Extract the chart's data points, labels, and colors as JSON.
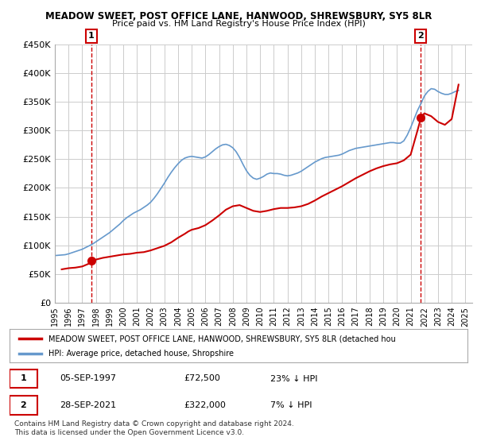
{
  "title_line1": "MEADOW SWEET, POST OFFICE LANE, HANWOOD, SHREWSBURY, SY5 8LR",
  "title_line2": "Price paid vs. HM Land Registry's House Price Index (HPI)",
  "ylabel": "",
  "ylim": [
    0,
    450000
  ],
  "yticks": [
    0,
    50000,
    100000,
    150000,
    200000,
    250000,
    300000,
    350000,
    400000,
    450000
  ],
  "ytick_labels": [
    "£0",
    "£50K",
    "£100K",
    "£150K",
    "£200K",
    "£250K",
    "£300K",
    "£350K",
    "£400K",
    "£450K"
  ],
  "xlim_start": 1995.0,
  "xlim_end": 2025.5,
  "xtick_years": [
    1995,
    1996,
    1997,
    1998,
    1999,
    2000,
    2001,
    2002,
    2003,
    2004,
    2005,
    2006,
    2007,
    2008,
    2009,
    2010,
    2011,
    2012,
    2013,
    2014,
    2015,
    2016,
    2017,
    2018,
    2019,
    2020,
    2021,
    2022,
    2023,
    2024,
    2025
  ],
  "hpi_color": "#6699cc",
  "price_color": "#cc0000",
  "marker_color": "#cc0000",
  "annotation_box_color": "#cc0000",
  "grid_color": "#cccccc",
  "background_color": "#ffffff",
  "purchase1_x": 1997.67,
  "purchase1_y": 72500,
  "purchase1_label": "1",
  "purchase2_x": 2021.73,
  "purchase2_y": 322000,
  "purchase2_label": "2",
  "legend_line1": "MEADOW SWEET, POST OFFICE LANE, HANWOOD, SHREWSBURY, SY5 8LR (detached hou",
  "legend_line2": "HPI: Average price, detached house, Shropshire",
  "table_row1_num": "1",
  "table_row1_date": "05-SEP-1997",
  "table_row1_price": "£72,500",
  "table_row1_hpi": "23% ↓ HPI",
  "table_row2_num": "2",
  "table_row2_date": "28-SEP-2021",
  "table_row2_price": "£322,000",
  "table_row2_hpi": "7% ↓ HPI",
  "footer": "Contains HM Land Registry data © Crown copyright and database right 2024.\nThis data is licensed under the Open Government Licence v3.0.",
  "hpi_data_x": [
    1995.0,
    1995.25,
    1995.5,
    1995.75,
    1996.0,
    1996.25,
    1996.5,
    1996.75,
    1997.0,
    1997.25,
    1997.5,
    1997.75,
    1998.0,
    1998.25,
    1998.5,
    1998.75,
    1999.0,
    1999.25,
    1999.5,
    1999.75,
    2000.0,
    2000.25,
    2000.5,
    2000.75,
    2001.0,
    2001.25,
    2001.5,
    2001.75,
    2002.0,
    2002.25,
    2002.5,
    2002.75,
    2003.0,
    2003.25,
    2003.5,
    2003.75,
    2004.0,
    2004.25,
    2004.5,
    2004.75,
    2005.0,
    2005.25,
    2005.5,
    2005.75,
    2006.0,
    2006.25,
    2006.5,
    2006.75,
    2007.0,
    2007.25,
    2007.5,
    2007.75,
    2008.0,
    2008.25,
    2008.5,
    2008.75,
    2009.0,
    2009.25,
    2009.5,
    2009.75,
    2010.0,
    2010.25,
    2010.5,
    2010.75,
    2011.0,
    2011.25,
    2011.5,
    2011.75,
    2012.0,
    2012.25,
    2012.5,
    2012.75,
    2013.0,
    2013.25,
    2013.5,
    2013.75,
    2014.0,
    2014.25,
    2014.5,
    2014.75,
    2015.0,
    2015.25,
    2015.5,
    2015.75,
    2016.0,
    2016.25,
    2016.5,
    2016.75,
    2017.0,
    2017.25,
    2017.5,
    2017.75,
    2018.0,
    2018.25,
    2018.5,
    2018.75,
    2019.0,
    2019.25,
    2019.5,
    2019.75,
    2020.0,
    2020.25,
    2020.5,
    2020.75,
    2021.0,
    2021.25,
    2021.5,
    2021.75,
    2022.0,
    2022.25,
    2022.5,
    2022.75,
    2023.0,
    2023.25,
    2023.5,
    2023.75,
    2024.0,
    2024.25,
    2024.5
  ],
  "hpi_data_y": [
    82000,
    82500,
    83000,
    83500,
    85000,
    87000,
    89000,
    91000,
    93000,
    96000,
    99000,
    102000,
    106000,
    110000,
    114000,
    118000,
    122000,
    127000,
    132000,
    137000,
    143000,
    148000,
    152000,
    156000,
    159000,
    162000,
    166000,
    170000,
    175000,
    182000,
    190000,
    199000,
    208000,
    218000,
    227000,
    235000,
    242000,
    248000,
    252000,
    254000,
    255000,
    254000,
    253000,
    252000,
    254000,
    258000,
    263000,
    268000,
    272000,
    275000,
    276000,
    274000,
    270000,
    263000,
    253000,
    241000,
    230000,
    222000,
    217000,
    215000,
    217000,
    220000,
    224000,
    226000,
    225000,
    225000,
    224000,
    222000,
    221000,
    222000,
    224000,
    226000,
    229000,
    233000,
    237000,
    241000,
    245000,
    248000,
    251000,
    253000,
    254000,
    255000,
    256000,
    257000,
    259000,
    262000,
    265000,
    267000,
    269000,
    270000,
    271000,
    272000,
    273000,
    274000,
    275000,
    276000,
    277000,
    278000,
    279000,
    279000,
    278000,
    278000,
    282000,
    292000,
    305000,
    320000,
    335000,
    347000,
    360000,
    368000,
    373000,
    372000,
    368000,
    365000,
    363000,
    363000,
    365000,
    368000,
    370000
  ],
  "price_data_x": [
    1995.5,
    1996.0,
    1996.5,
    1997.0,
    1997.5,
    1997.75,
    1998.0,
    1998.5,
    1999.0,
    1999.5,
    2000.0,
    2000.5,
    2001.0,
    2001.5,
    2002.0,
    2002.5,
    2003.0,
    2003.5,
    2004.0,
    2004.5,
    2004.75,
    2005.0,
    2005.5,
    2006.0,
    2006.5,
    2007.0,
    2007.5,
    2008.0,
    2008.5,
    2009.0,
    2009.5,
    2010.0,
    2010.5,
    2011.0,
    2011.5,
    2012.0,
    2012.5,
    2013.0,
    2013.5,
    2014.0,
    2014.5,
    2015.0,
    2015.5,
    2016.0,
    2016.5,
    2017.0,
    2017.5,
    2018.0,
    2018.5,
    2019.0,
    2019.5,
    2020.0,
    2020.5,
    2021.0,
    2021.5,
    2021.75,
    2022.0,
    2022.5,
    2023.0,
    2023.5,
    2024.0,
    2024.5
  ],
  "price_data_y": [
    58000,
    60000,
    61000,
    63000,
    68000,
    72500,
    75000,
    78000,
    80000,
    82000,
    84000,
    85000,
    87000,
    88000,
    91000,
    95000,
    99000,
    105000,
    113000,
    120000,
    124000,
    127000,
    130000,
    135000,
    143000,
    152000,
    162000,
    168000,
    170000,
    165000,
    160000,
    158000,
    160000,
    163000,
    165000,
    165000,
    166000,
    168000,
    172000,
    178000,
    185000,
    191000,
    197000,
    203000,
    210000,
    217000,
    223000,
    229000,
    234000,
    238000,
    241000,
    243000,
    248000,
    258000,
    300000,
    322000,
    330000,
    325000,
    315000,
    310000,
    320000,
    380000
  ]
}
